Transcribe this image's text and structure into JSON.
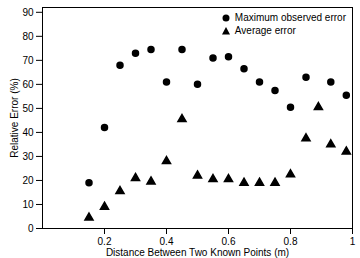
{
  "chart_data": {
    "type": "scatter",
    "xlabel": "Distance Between Two Known Points (m)",
    "ylabel": "Relative Error (%)",
    "xlim": [
      0,
      1
    ],
    "xticks": [
      0.2,
      0.4,
      0.6,
      0.8,
      1
    ],
    "ylim": [
      0,
      92
    ],
    "yticks": [
      0,
      10,
      20,
      30,
      40,
      50,
      60,
      70,
      80,
      90
    ],
    "legend": "upper right",
    "series": [
      {
        "name": "Maximum observed error",
        "color": "#000000",
        "marker": "circle",
        "x": [
          0.15,
          0.2,
          0.25,
          0.3,
          0.35,
          0.4,
          0.45,
          0.5,
          0.55,
          0.6,
          0.65,
          0.7,
          0.75,
          0.8,
          0.85,
          0.93,
          0.98
        ],
        "values": [
          19,
          42,
          68,
          73,
          74.5,
          61,
          74.5,
          60,
          71,
          71.5,
          66.5,
          61,
          57.5,
          50.5,
          63,
          61,
          55.5
        ]
      },
      {
        "name": "Average error",
        "color": "#000000",
        "marker": "triangle",
        "x": [
          0.15,
          0.2,
          0.25,
          0.3,
          0.35,
          0.4,
          0.45,
          0.5,
          0.55,
          0.6,
          0.65,
          0.7,
          0.75,
          0.8,
          0.85,
          0.89,
          0.93,
          0.98
        ],
        "values": [
          4.5,
          9,
          15.5,
          21,
          19.5,
          28,
          45.5,
          22,
          20.5,
          20.5,
          19,
          19,
          19,
          22.5,
          37.5,
          50.5,
          35,
          32
        ]
      }
    ]
  }
}
